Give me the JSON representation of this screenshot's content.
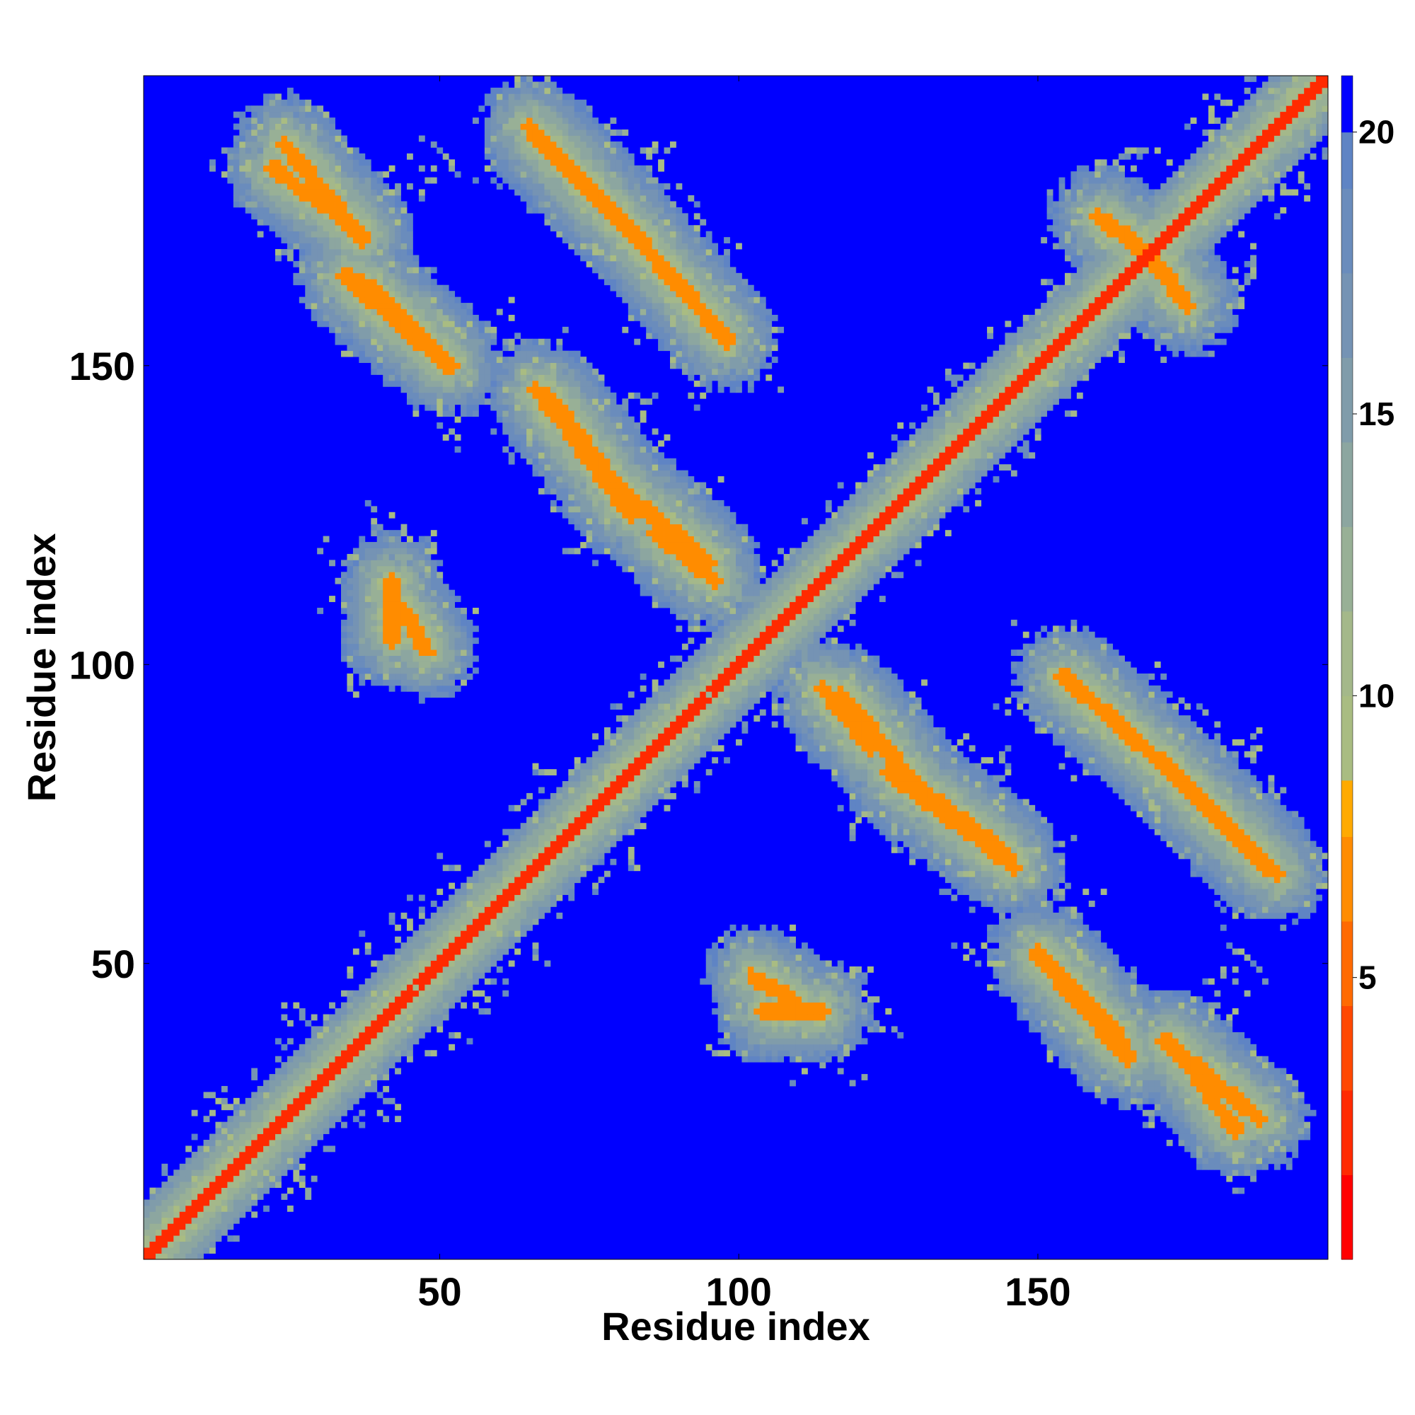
{
  "chart_data": {
    "type": "heatmap",
    "title": "",
    "xlabel": "Residue index",
    "ylabel": "Residue index",
    "xlim": [
      1,
      198
    ],
    "ylim": [
      1,
      198
    ],
    "x_ticks": [
      50,
      100,
      150
    ],
    "y_ticks": [
      50,
      100,
      150
    ],
    "x_tick_labels": [
      "50",
      "100",
      "150"
    ],
    "y_tick_labels": [
      "50",
      "100",
      "150"
    ],
    "colorbar": {
      "range": [
        0,
        21
      ],
      "ticks": [
        5,
        10,
        15,
        20
      ],
      "tick_labels": [
        "5",
        "10",
        "15",
        "20"
      ],
      "levels": [
        {
          "lower": 0,
          "upper": 1.5,
          "color": "#ff0000"
        },
        {
          "lower": 1.5,
          "upper": 3,
          "color": "#ff2a00"
        },
        {
          "lower": 3,
          "upper": 4.5,
          "color": "#ff4800"
        },
        {
          "lower": 4.5,
          "upper": 6,
          "color": "#ff6a00"
        },
        {
          "lower": 6,
          "upper": 7.5,
          "color": "#ff8c00"
        },
        {
          "lower": 7.5,
          "upper": 8.5,
          "color": "#ffaa00"
        },
        {
          "lower": 8.5,
          "upper": 10,
          "color": "#a9bc82"
        },
        {
          "lower": 10,
          "upper": 11.5,
          "color": "#a4b88a"
        },
        {
          "lower": 11.5,
          "upper": 13,
          "color": "#98b096"
        },
        {
          "lower": 13,
          "upper": 14.5,
          "color": "#8ca6a0"
        },
        {
          "lower": 14.5,
          "upper": 16,
          "color": "#809caa"
        },
        {
          "lower": 16,
          "upper": 17.5,
          "color": "#7593b4"
        },
        {
          "lower": 17.5,
          "upper": 19,
          "color": "#6a8cbc"
        },
        {
          "lower": 19,
          "upper": 20,
          "color": "#5f84c4"
        },
        {
          "lower": 20,
          "upper": 21,
          "color": "#0000ff"
        }
      ]
    },
    "background_value": 21,
    "background_color": "#0000ff",
    "contact_bands": [
      {
        "x": [
          1,
          198
        ],
        "y": [
          1,
          198
        ],
        "value": 1.5
      },
      {
        "x": [
          22,
          37
        ],
        "y": [
          183,
          172
        ],
        "value": 6
      },
      {
        "x": [
          34,
          51
        ],
        "y": [
          165,
          150
        ],
        "value": 6
      },
      {
        "x": [
          66,
          84
        ],
        "y": [
          188,
          170
        ],
        "value": 6
      },
      {
        "x": [
          84,
          97
        ],
        "y": [
          170,
          155
        ],
        "value": 6
      },
      {
        "x": [
          66,
          82
        ],
        "y": [
          146,
          125
        ],
        "value": 6
      },
      {
        "x": [
          86,
          96
        ],
        "y": [
          122,
          114
        ],
        "value": 6
      },
      {
        "x": [
          117,
          132
        ],
        "y": [
          95,
          77
        ],
        "value": 6
      },
      {
        "x": [
          133,
          145
        ],
        "y": [
          77,
          68
        ],
        "value": 6
      },
      {
        "x": [
          154,
          169
        ],
        "y": [
          98,
          85
        ],
        "value": 6
      },
      {
        "x": [
          171,
          190
        ],
        "y": [
          83,
          65
        ],
        "value": 6
      },
      {
        "x": [
          150,
          164
        ],
        "y": [
          52,
          37
        ],
        "value": 6
      },
      {
        "x": [
          171,
          187
        ],
        "y": [
          37,
          24
        ],
        "value": 6
      },
      {
        "x": [
          43,
          48
        ],
        "y": [
          110,
          102
        ],
        "value": 7
      },
      {
        "x": [
          104,
          114
        ],
        "y": [
          42,
          42
        ],
        "value": 7
      },
      {
        "x": [
          160,
          172
        ],
        "y": [
          175,
          165
        ],
        "value": 7
      }
    ]
  }
}
